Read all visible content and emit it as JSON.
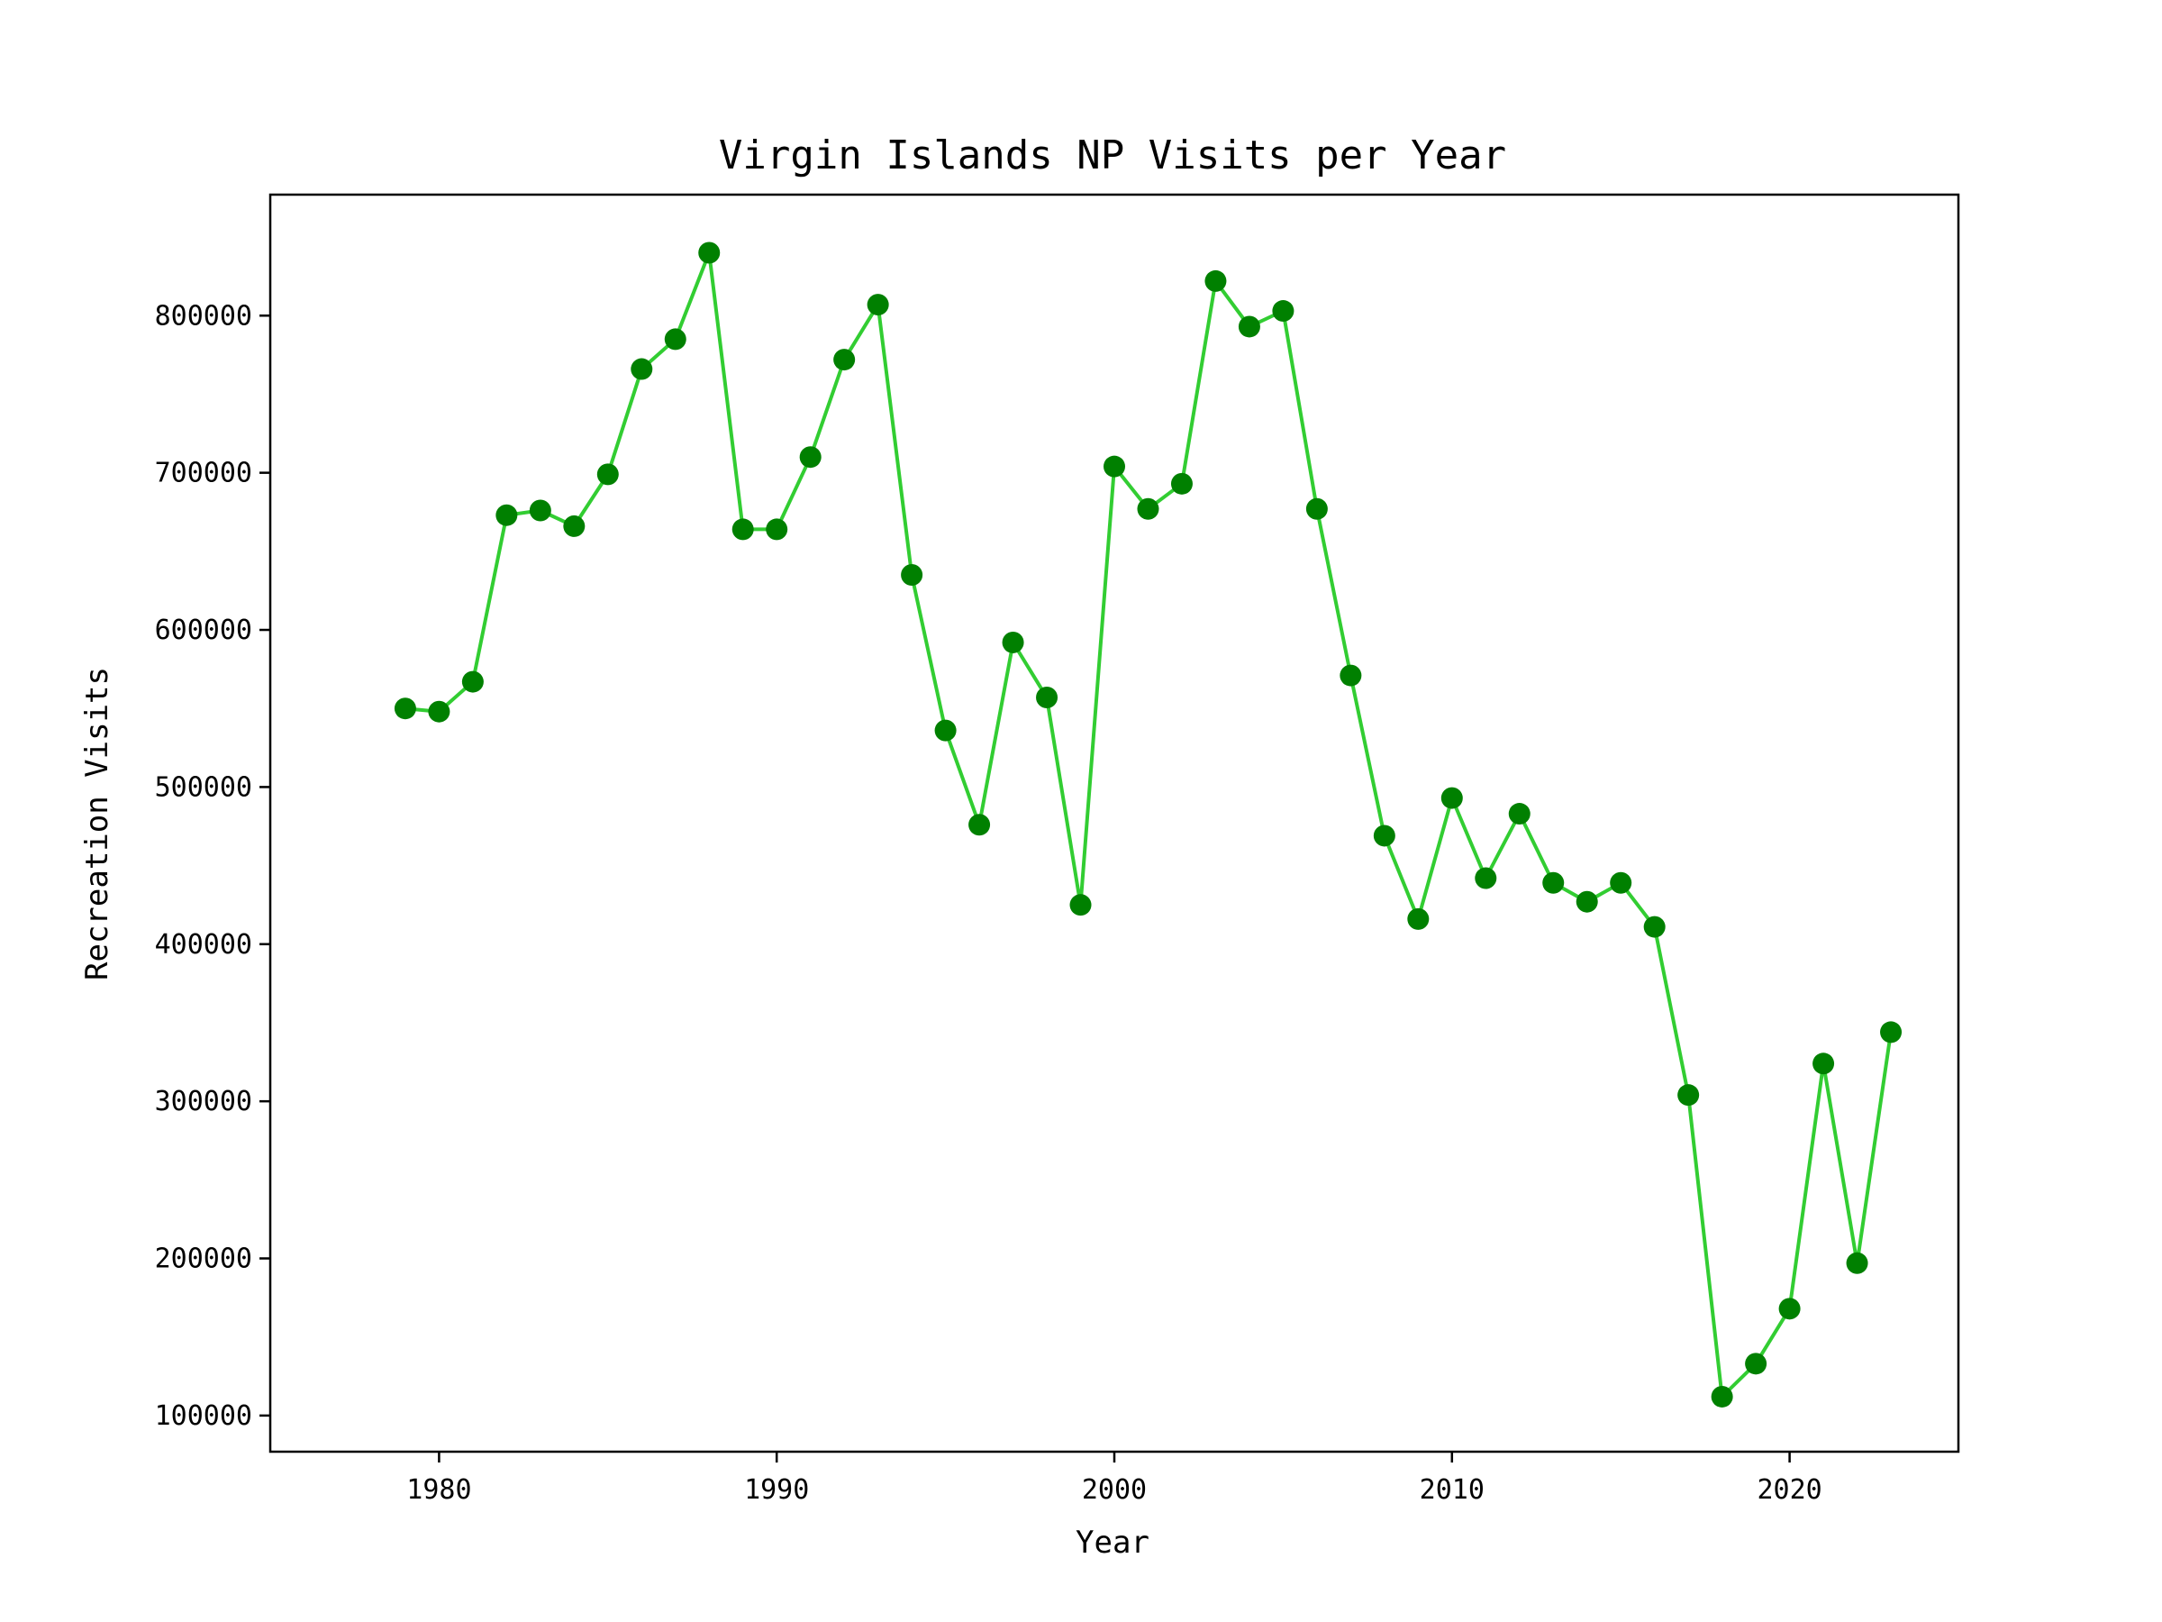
{
  "chart_data": {
    "type": "line",
    "title": "Virgin Islands NP Visits per Year",
    "xlabel": "Year",
    "ylabel": "Recreation Visits",
    "xlim": [
      1975,
      2025
    ],
    "ylim": [
      77000,
      877000
    ],
    "x_ticks": [
      1980,
      1990,
      2000,
      2010,
      2020
    ],
    "y_ticks": [
      100000,
      200000,
      300000,
      400000,
      500000,
      600000,
      700000,
      800000
    ],
    "x_tick_labels": [
      "1980",
      "1990",
      "2000",
      "2010",
      "2020"
    ],
    "y_tick_labels": [
      "100000",
      "200000",
      "300000",
      "400000",
      "500000",
      "600000",
      "700000",
      "800000"
    ],
    "grid": false,
    "line_color": "#32cd32",
    "marker_color": "#008000",
    "series": [
      {
        "x": [
          1979,
          1980,
          1981,
          1982,
          1983,
          1984,
          1985,
          1986,
          1987,
          1988,
          1989,
          1990,
          1991,
          1992,
          1993,
          1994,
          1995,
          1996,
          1997,
          1998,
          1999,
          2000,
          2001,
          2002,
          2003,
          2004,
          2005,
          2006,
          2007,
          2008,
          2009,
          2010,
          2011,
          2012,
          2013,
          2014,
          2015,
          2016,
          2017,
          2018,
          2019,
          2020,
          2021,
          2022,
          2023
        ],
        "values": [
          550000,
          548000,
          567000,
          673000,
          676000,
          666000,
          699000,
          766000,
          785000,
          840000,
          664000,
          664000,
          710000,
          772000,
          807000,
          635000,
          536000,
          476000,
          592000,
          557000,
          425000,
          704000,
          677000,
          693000,
          822000,
          793000,
          803000,
          677000,
          571000,
          469000,
          416000,
          493000,
          442000,
          483000,
          439000,
          427000,
          439000,
          411000,
          304000,
          112000,
          133000,
          168000,
          324000,
          197000,
          344000
        ]
      }
    ]
  }
}
